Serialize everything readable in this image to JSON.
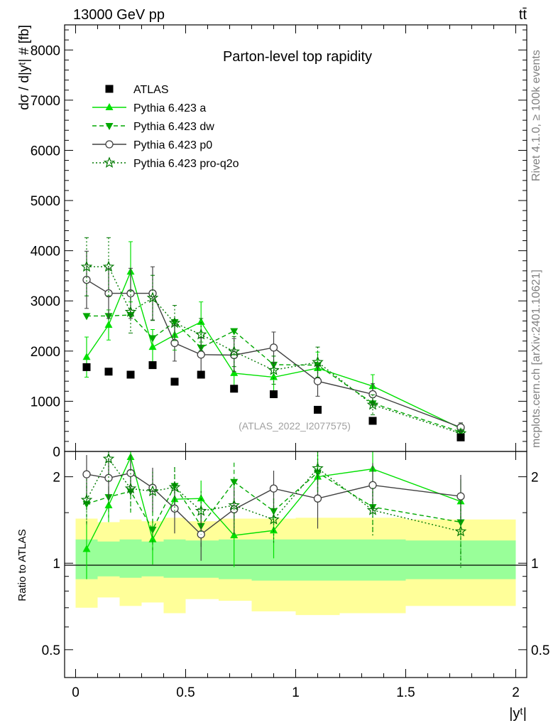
{
  "header": {
    "energy_label": "13000 GeV pp",
    "process_label": "tt̄"
  },
  "side_labels": {
    "rivet": "Rivet 4.1.0, ≥ 100k events",
    "mcplots": "mcplots.cern.ch [arXiv:2401.10621]"
  },
  "chart_data": [
    {
      "type": "line",
      "title": "Parton-level top rapidity",
      "ylabel": "dσ / d|yᵗ| # [fb]",
      "xlabel": "|yᵗ|",
      "analysis_id": "(ATLAS_2022_I2077575)",
      "xlim": [
        -0.05,
        2.05
      ],
      "ylim": [
        0,
        8500
      ],
      "y_ticks": [
        "0",
        "1000",
        "2000",
        "3000",
        "4000",
        "5000",
        "6000",
        "7000",
        "8000"
      ],
      "x": [
        0.05,
        0.15,
        0.25,
        0.35,
        0.45,
        0.57,
        0.72,
        0.9,
        1.1,
        1.35,
        1.75
      ],
      "reference": {
        "name": "ATLAS",
        "values": [
          1680,
          1590,
          1530,
          1720,
          1390,
          1530,
          1250,
          1140,
          830,
          610,
          280
        ]
      },
      "series": [
        {
          "name": "Pythia 6.423 a",
          "color": "#00e000",
          "marker": "triangle-up",
          "dash": "solid",
          "values": [
            1880,
            2520,
            3580,
            2080,
            2320,
            2580,
            1560,
            1480,
            1660,
            1300,
            460
          ],
          "errors": [
            400,
            300,
            600,
            350,
            300,
            400,
            350,
            300,
            320,
            230,
            90
          ]
        },
        {
          "name": "Pythia 6.423 dw",
          "color": "#00a800",
          "marker": "triangle-down",
          "dash": "dashed",
          "values": [
            2700,
            2700,
            2720,
            2260,
            2580,
            2070,
            2400,
            1730,
            1720,
            960,
            390
          ]
        },
        {
          "name": "Pythia 6.423 p0",
          "color": "#404040",
          "marker": "circle",
          "dash": "solid",
          "values": [
            3420,
            3150,
            3150,
            3150,
            2160,
            1930,
            1920,
            2070,
            1400,
            1140,
            480
          ],
          "errors": [
            570,
            500,
            500,
            530,
            360,
            330,
            330,
            310,
            300,
            210,
            90
          ]
        },
        {
          "name": "Pythia 6.423 pro-q2o",
          "color": "#007800",
          "marker": "star",
          "dash": "dotted",
          "values": [
            3680,
            3680,
            2780,
            3060,
            2560,
            2330,
            1990,
            1620,
            1780,
            930,
            360
          ],
          "errors": [
            580,
            580,
            420,
            450,
            350,
            320,
            300,
            280,
            300,
            200,
            80
          ]
        }
      ],
      "legend": [
        "ATLAS",
        "Pythia 6.423 a",
        "Pythia 6.423 dw",
        "Pythia 6.423 p0",
        "Pythia 6.423 pro-q2o"
      ]
    },
    {
      "type": "line",
      "ylabel": "Ratio to ATLAS",
      "xlabel": "|yᵗ|",
      "scale": "log",
      "ylim": [
        0.4,
        2.45
      ],
      "y_ticks": [
        "0.5",
        "1",
        "2"
      ],
      "x_ticks": [
        "0",
        "0.5",
        "1",
        "1.5",
        "2"
      ],
      "bin_edges": [
        0,
        0.1,
        0.2,
        0.3,
        0.4,
        0.5,
        0.65,
        0.8,
        1.0,
        1.2,
        1.5,
        2.0
      ],
      "band_inner": {
        "low": [
          0.88,
          0.9,
          0.89,
          0.9,
          0.89,
          0.89,
          0.88,
          0.87,
          0.87,
          0.87,
          0.88
        ],
        "high": [
          1.21,
          1.19,
          1.21,
          1.19,
          1.21,
          1.2,
          1.21,
          1.21,
          1.21,
          1.21,
          1.2
        ]
      },
      "band_outer": {
        "low": [
          0.7,
          0.76,
          0.71,
          0.73,
          0.67,
          0.75,
          0.74,
          0.68,
          0.66,
          0.67,
          0.71
        ],
        "high": [
          1.43,
          1.39,
          1.42,
          1.4,
          1.44,
          1.4,
          1.43,
          1.43,
          1.44,
          1.44,
          1.42
        ]
      },
      "series": [
        {
          "name": "Pythia 6.423 a",
          "values": [
            1.12,
            1.59,
            2.34,
            1.21,
            1.67,
            1.68,
            1.25,
            1.3,
            2.0,
            2.13,
            1.64
          ],
          "errors": [
            0.24,
            0.2,
            0.38,
            0.22,
            0.2,
            0.26,
            0.28,
            0.26,
            0.38,
            0.38,
            0.32
          ]
        },
        {
          "name": "Pythia 6.423 dw",
          "values": [
            1.61,
            1.7,
            1.78,
            1.31,
            1.86,
            1.35,
            1.92,
            1.52,
            2.07,
            1.57,
            1.39
          ],
          "errors": [
            0.26,
            0.26,
            0.28,
            0.2,
            0.3,
            0.22,
            0.32,
            0.26,
            0.4,
            0.3,
            0.36
          ]
        },
        {
          "name": "Pythia 6.423 p0",
          "values": [
            2.04,
            1.98,
            2.06,
            1.83,
            1.55,
            1.26,
            1.54,
            1.82,
            1.68,
            1.87,
            1.71
          ],
          "errors": [
            0.34,
            0.32,
            0.33,
            0.32,
            0.28,
            0.24,
            0.28,
            0.28,
            0.36,
            0.36,
            0.32
          ]
        },
        {
          "name": "Pythia 6.423 pro-q2o",
          "values": [
            1.66,
            2.31,
            1.82,
            1.78,
            1.84,
            1.52,
            1.59,
            1.42,
            2.14,
            1.53,
            1.29
          ],
          "errors": [
            0.3,
            0.4,
            0.3,
            0.3,
            0.32,
            0.26,
            0.3,
            0.26,
            0.4,
            0.3,
            0.34
          ]
        }
      ]
    }
  ]
}
